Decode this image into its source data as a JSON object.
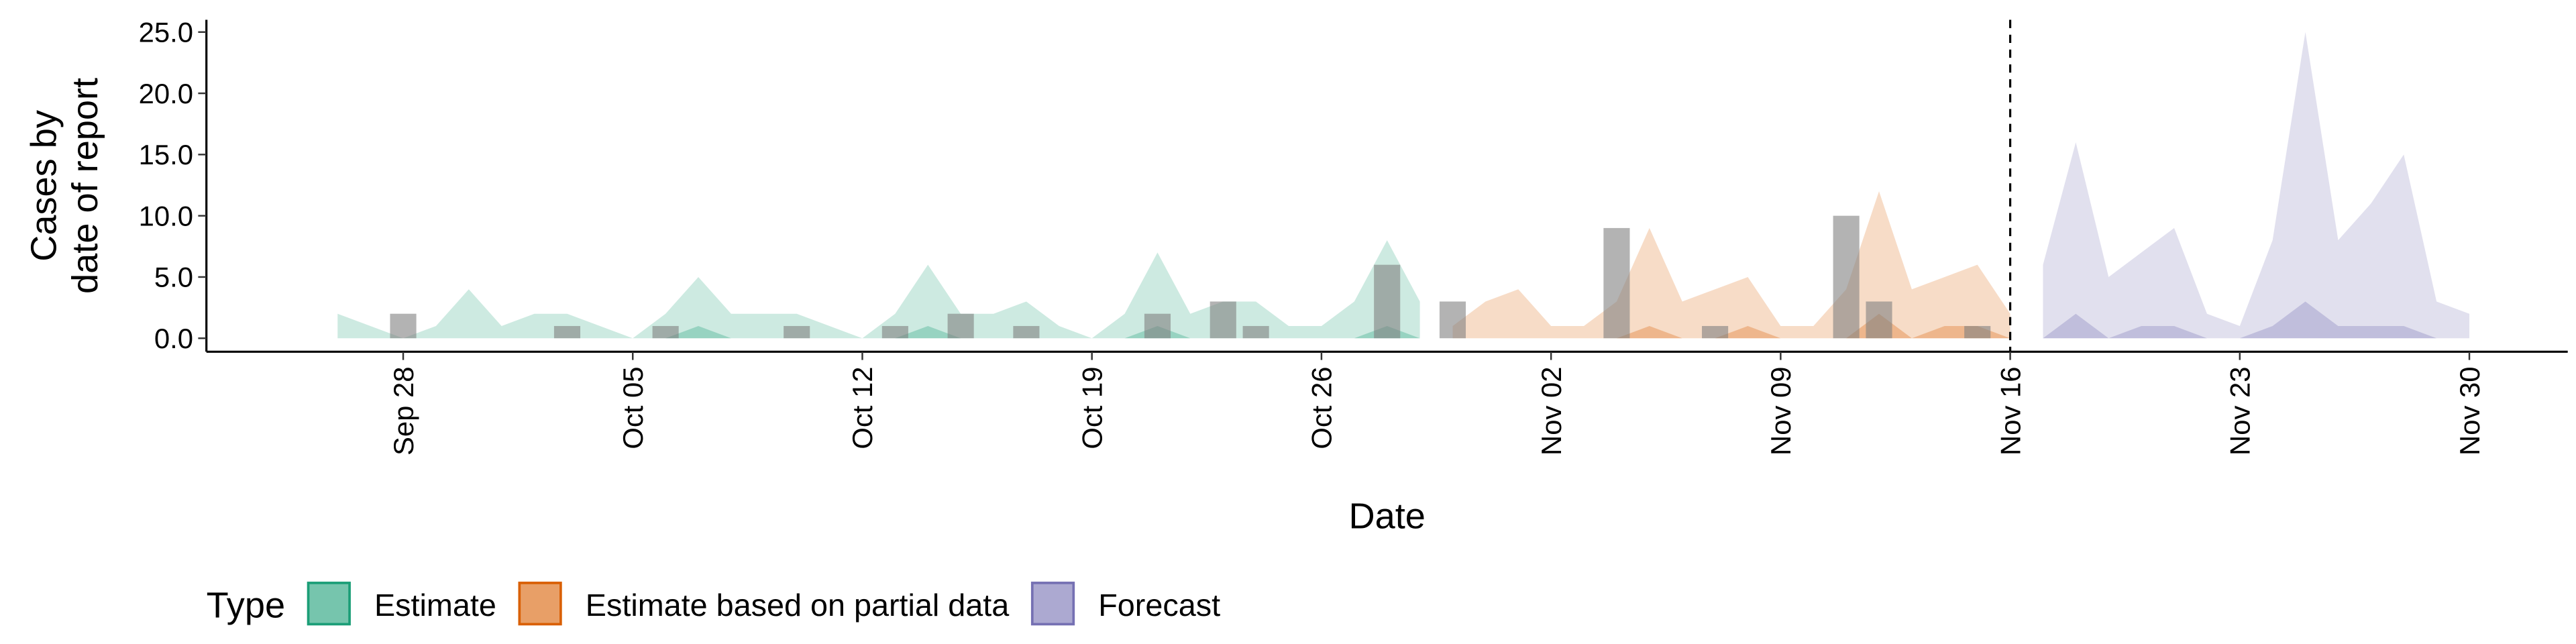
{
  "chart_data": {
    "type": "area",
    "xlabel": "Date",
    "ylabel": [
      "Cases by",
      "date of report"
    ],
    "xlim": [
      "Sep 22",
      "Dec 03"
    ],
    "xticks": [
      "Sep 28",
      "Oct 05",
      "Oct 12",
      "Oct 19",
      "Oct 26",
      "Nov 02",
      "Nov 09",
      "Nov 16",
      "Nov 23",
      "Nov 30"
    ],
    "ylim": [
      -1.1,
      26
    ],
    "yticks": [
      {
        "value": 0,
        "label": "0.0"
      },
      {
        "value": 5,
        "label": "5.0"
      },
      {
        "value": 10,
        "label": "10.0"
      },
      {
        "value": 15,
        "label": "15.0"
      },
      {
        "value": 20,
        "label": "20.0"
      },
      {
        "value": 25,
        "label": "25.0"
      }
    ],
    "vline": "Nov 16",
    "legend_title": "Type",
    "series": [
      {
        "name": "Estimate",
        "color": "#1b9e77",
        "x": [
          "Sep 26",
          "Sep 27",
          "Sep 28",
          "Sep 29",
          "Sep 30",
          "Oct 01",
          "Oct 02",
          "Oct 03",
          "Oct 04",
          "Oct 05",
          "Oct 06",
          "Oct 07",
          "Oct 08",
          "Oct 09",
          "Oct 10",
          "Oct 11",
          "Oct 12",
          "Oct 13",
          "Oct 14",
          "Oct 15",
          "Oct 16",
          "Oct 17",
          "Oct 18",
          "Oct 19",
          "Oct 20",
          "Oct 21",
          "Oct 22",
          "Oct 23",
          "Oct 24",
          "Oct 25",
          "Oct 26",
          "Oct 27",
          "Oct 28",
          "Oct 29"
        ],
        "outer": [
          2,
          1,
          0,
          1,
          4,
          1,
          2,
          2,
          1,
          0,
          2,
          5,
          2,
          2,
          2,
          1,
          0,
          2,
          6,
          2,
          2,
          3,
          1,
          0,
          2,
          7,
          2,
          3,
          3,
          1,
          1,
          3,
          8,
          3
        ],
        "inner": [
          0,
          0,
          0,
          0,
          0,
          0,
          0,
          0,
          0,
          0,
          0,
          1,
          0,
          0,
          0,
          0,
          0,
          0,
          1,
          0,
          0,
          0,
          0,
          0,
          0,
          1,
          0,
          0,
          0,
          0,
          0,
          0,
          1,
          0
        ]
      },
      {
        "name": "Estimate based on partial data",
        "color": "#d95f02",
        "x": [
          "Oct 30",
          "Oct 31",
          "Nov 01",
          "Nov 02",
          "Nov 03",
          "Nov 04",
          "Nov 05",
          "Nov 06",
          "Nov 07",
          "Nov 08",
          "Nov 09",
          "Nov 10",
          "Nov 11",
          "Nov 12",
          "Nov 13",
          "Nov 14",
          "Nov 15",
          "Nov 16"
        ],
        "outer": [
          1,
          3,
          4,
          1,
          1,
          3,
          9,
          3,
          4,
          5,
          1,
          1,
          4,
          12,
          4,
          5,
          6,
          2
        ],
        "inner": [
          0,
          0,
          0,
          0,
          0,
          0,
          1,
          0,
          0,
          1,
          0,
          0,
          0,
          2,
          0,
          1,
          1,
          0
        ]
      },
      {
        "name": "Forecast",
        "color": "#7570b3",
        "x": [
          "Nov 17",
          "Nov 18",
          "Nov 19",
          "Nov 20",
          "Nov 21",
          "Nov 22",
          "Nov 23",
          "Nov 24",
          "Nov 25",
          "Nov 26",
          "Nov 27",
          "Nov 28",
          "Nov 29",
          "Nov 30"
        ],
        "outer": [
          6,
          16,
          5,
          7,
          9,
          2,
          1,
          8,
          25,
          8,
          11,
          15,
          3,
          2
        ],
        "inner": [
          0,
          2,
          0,
          1,
          1,
          0,
          0,
          1,
          3,
          1,
          1,
          1,
          0,
          0
        ]
      }
    ],
    "bars": {
      "color": "#808080",
      "x": [
        "Sep 28",
        "Oct 03",
        "Oct 06",
        "Oct 10",
        "Oct 13",
        "Oct 15",
        "Oct 17",
        "Oct 21",
        "Oct 23",
        "Oct 24",
        "Oct 28",
        "Oct 30",
        "Nov 04",
        "Nov 07",
        "Nov 11",
        "Nov 12",
        "Nov 15"
      ],
      "values": [
        2,
        1,
        1,
        1,
        1,
        2,
        1,
        2,
        3,
        1,
        6,
        3,
        9,
        1,
        10,
        3,
        1
      ]
    }
  }
}
